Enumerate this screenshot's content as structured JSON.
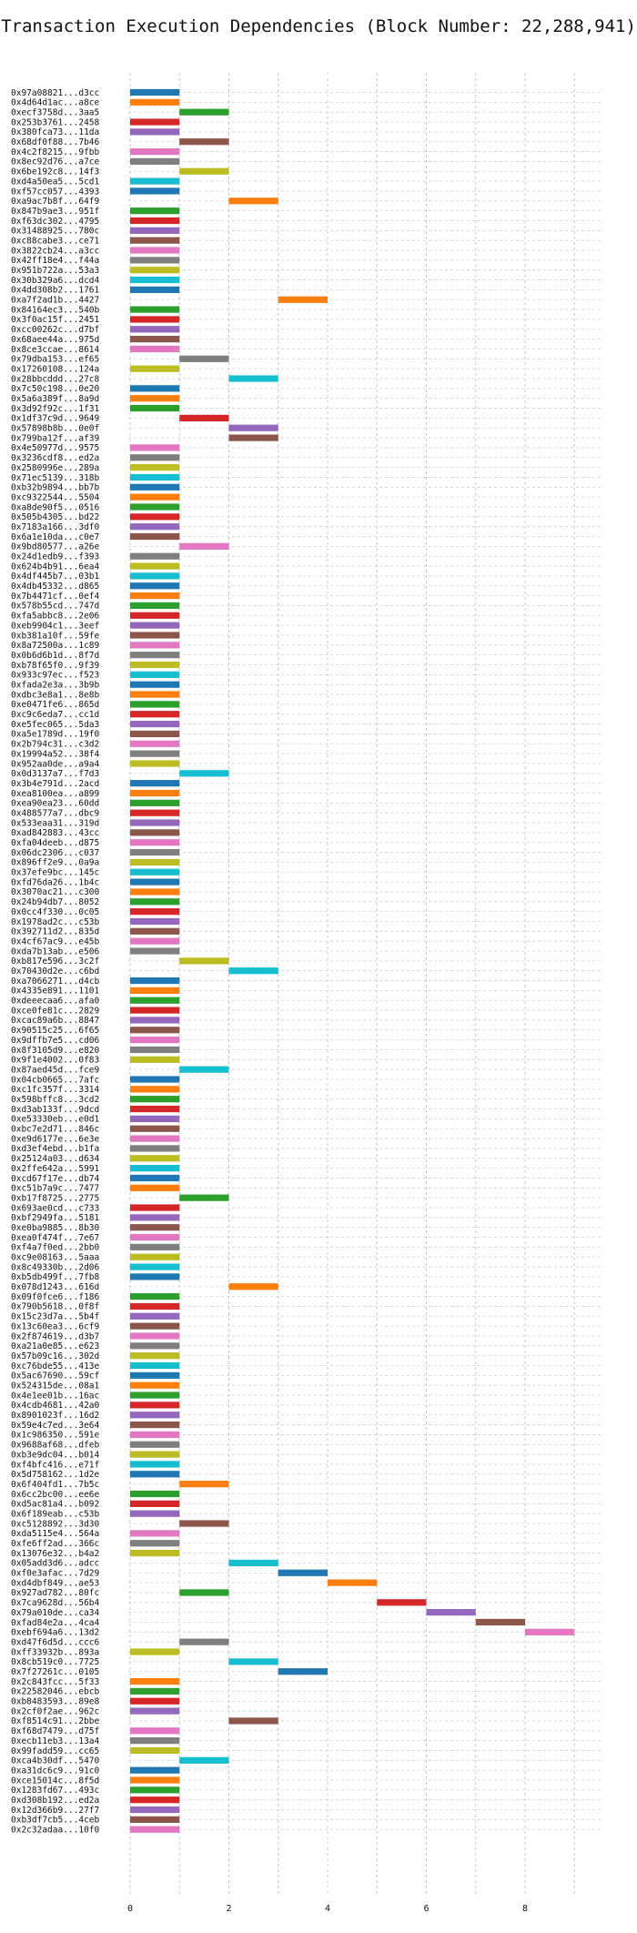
{
  "chart_data": {
    "type": "bar",
    "orientation": "horizontal",
    "title": "Transaction Execution Dependencies (Block Number: 22,288,941)",
    "xlabel": "",
    "ylabel": "",
    "xlim": [
      0,
      9.5
    ],
    "xticks": [
      "0",
      "2",
      "4",
      "6",
      "8"
    ],
    "grid": true,
    "palette": [
      "#1f77b4",
      "#ff7f0e",
      "#2ca02c",
      "#d62728",
      "#9467bd",
      "#8c564b",
      "#e377c2",
      "#7f7f7f",
      "#bcbd22",
      "#17becf"
    ],
    "transactions": [
      {
        "label": "0x97a08821...d3cc",
        "start": 0,
        "end": 1
      },
      {
        "label": "0x4d64d1ac...a8ce",
        "start": 0,
        "end": 1
      },
      {
        "label": "0xecf3758d...3aa5",
        "start": 1,
        "end": 2
      },
      {
        "label": "0x253b3761...2458",
        "start": 0,
        "end": 1
      },
      {
        "label": "0x380fca73...11da",
        "start": 0,
        "end": 1
      },
      {
        "label": "0x68df0f88...7b46",
        "start": 1,
        "end": 2
      },
      {
        "label": "0x4c2f8215...9fbb",
        "start": 0,
        "end": 1
      },
      {
        "label": "0x8ec92d76...a7ce",
        "start": 0,
        "end": 1
      },
      {
        "label": "0x6be192c8...14f3",
        "start": 1,
        "end": 2
      },
      {
        "label": "0xd4a50ea5...5cd1",
        "start": 0,
        "end": 1
      },
      {
        "label": "0xf57cc057...4393",
        "start": 0,
        "end": 1
      },
      {
        "label": "0xa9ac7b8f...64f9",
        "start": 2,
        "end": 3
      },
      {
        "label": "0x847b9ae3...951f",
        "start": 0,
        "end": 1
      },
      {
        "label": "0xf63dc302...4795",
        "start": 0,
        "end": 1
      },
      {
        "label": "0x31488925...780c",
        "start": 0,
        "end": 1
      },
      {
        "label": "0xc88cabe3...ce71",
        "start": 0,
        "end": 1
      },
      {
        "label": "0x3822cb24...a3cc",
        "start": 0,
        "end": 1
      },
      {
        "label": "0x42ff18e4...f44a",
        "start": 0,
        "end": 1
      },
      {
        "label": "0x951b722a...53a3",
        "start": 0,
        "end": 1
      },
      {
        "label": "0x30b329a6...dcd4",
        "start": 0,
        "end": 1
      },
      {
        "label": "0x4dd308b2...1761",
        "start": 0,
        "end": 1
      },
      {
        "label": "0xa7f2ad1b...4427",
        "start": 3,
        "end": 4
      },
      {
        "label": "0x84164ec3...540b",
        "start": 0,
        "end": 1
      },
      {
        "label": "0x3f0ac15f...2451",
        "start": 0,
        "end": 1
      },
      {
        "label": "0xcc00262c...d7bf",
        "start": 0,
        "end": 1
      },
      {
        "label": "0x68aee44a...975d",
        "start": 0,
        "end": 1
      },
      {
        "label": "0x8ce3ccae...8614",
        "start": 0,
        "end": 1
      },
      {
        "label": "0x79dba153...ef65",
        "start": 1,
        "end": 2
      },
      {
        "label": "0x17260108...124a",
        "start": 0,
        "end": 1
      },
      {
        "label": "0x28bbcddd...27c8",
        "start": 2,
        "end": 3
      },
      {
        "label": "0x7c50c198...0e20",
        "start": 0,
        "end": 1
      },
      {
        "label": "0x5a6a389f...8a9d",
        "start": 0,
        "end": 1
      },
      {
        "label": "0x3d92f92c...1f31",
        "start": 0,
        "end": 1
      },
      {
        "label": "0x1df37c9d...9649",
        "start": 1,
        "end": 2
      },
      {
        "label": "0x57898b8b...0e0f",
        "start": 2,
        "end": 3
      },
      {
        "label": "0x799ba12f...af39",
        "start": 2,
        "end": 3
      },
      {
        "label": "0x4e50977d...9575",
        "start": 0,
        "end": 1
      },
      {
        "label": "0x3236cdf8...ed2a",
        "start": 0,
        "end": 1
      },
      {
        "label": "0x2580996e...289a",
        "start": 0,
        "end": 1
      },
      {
        "label": "0x71ec5139...318b",
        "start": 0,
        "end": 1
      },
      {
        "label": "0xb32b9894...bb7b",
        "start": 0,
        "end": 1
      },
      {
        "label": "0xc9322544...5504",
        "start": 0,
        "end": 1
      },
      {
        "label": "0xa8de90f5...0516",
        "start": 0,
        "end": 1
      },
      {
        "label": "0x505b4305...bd22",
        "start": 0,
        "end": 1
      },
      {
        "label": "0x7183a166...3df0",
        "start": 0,
        "end": 1
      },
      {
        "label": "0x6a1e10da...c0e7",
        "start": 0,
        "end": 1
      },
      {
        "label": "0x9bd80577...a26e",
        "start": 1,
        "end": 2
      },
      {
        "label": "0x24d1edb9...f393",
        "start": 0,
        "end": 1
      },
      {
        "label": "0x624b4b91...6ea4",
        "start": 0,
        "end": 1
      },
      {
        "label": "0x4df445b7...03b1",
        "start": 0,
        "end": 1
      },
      {
        "label": "0x4db45332...d865",
        "start": 0,
        "end": 1
      },
      {
        "label": "0x7b4471cf...0ef4",
        "start": 0,
        "end": 1
      },
      {
        "label": "0x578b55cd...747d",
        "start": 0,
        "end": 1
      },
      {
        "label": "0xfa5abbc8...2e06",
        "start": 0,
        "end": 1
      },
      {
        "label": "0xeb9904c1...3eef",
        "start": 0,
        "end": 1
      },
      {
        "label": "0xb381a10f...59fe",
        "start": 0,
        "end": 1
      },
      {
        "label": "0x8a72500a...1c89",
        "start": 0,
        "end": 1
      },
      {
        "label": "0x0b6d6b1d...8f7d",
        "start": 0,
        "end": 1
      },
      {
        "label": "0xb78f65f0...9f39",
        "start": 0,
        "end": 1
      },
      {
        "label": "0x933c97ec...f523",
        "start": 0,
        "end": 1
      },
      {
        "label": "0xfada2e3a...3b9b",
        "start": 0,
        "end": 1
      },
      {
        "label": "0xdbc3e8a1...8e8b",
        "start": 0,
        "end": 1
      },
      {
        "label": "0xe0471fe6...865d",
        "start": 0,
        "end": 1
      },
      {
        "label": "0xc9c6eda7...cc1d",
        "start": 0,
        "end": 1
      },
      {
        "label": "0xe5fec065...5da3",
        "start": 0,
        "end": 1
      },
      {
        "label": "0xa5e1789d...19f0",
        "start": 0,
        "end": 1
      },
      {
        "label": "0x2b794c31...c3d2",
        "start": 0,
        "end": 1
      },
      {
        "label": "0x19994a52...38f4",
        "start": 0,
        "end": 1
      },
      {
        "label": "0x952aa0de...a9a4",
        "start": 0,
        "end": 1
      },
      {
        "label": "0x0d3137a7...f7d3",
        "start": 1,
        "end": 2
      },
      {
        "label": "0x3b4e791d...2acd",
        "start": 0,
        "end": 1
      },
      {
        "label": "0xea8100ea...a899",
        "start": 0,
        "end": 1
      },
      {
        "label": "0xea90ea23...60dd",
        "start": 0,
        "end": 1
      },
      {
        "label": "0x488577a7...dbc9",
        "start": 0,
        "end": 1
      },
      {
        "label": "0x533eaa31...319d",
        "start": 0,
        "end": 1
      },
      {
        "label": "0xad842883...43cc",
        "start": 0,
        "end": 1
      },
      {
        "label": "0xfa04deeb...d875",
        "start": 0,
        "end": 1
      },
      {
        "label": "0x06dc2306...c037",
        "start": 0,
        "end": 1
      },
      {
        "label": "0x896ff2e9...0a9a",
        "start": 0,
        "end": 1
      },
      {
        "label": "0x37efe9bc...145c",
        "start": 0,
        "end": 1
      },
      {
        "label": "0xfd76da26...1b4c",
        "start": 0,
        "end": 1
      },
      {
        "label": "0x3070ac21...c300",
        "start": 0,
        "end": 1
      },
      {
        "label": "0x24b94db7...8052",
        "start": 0,
        "end": 1
      },
      {
        "label": "0x0cc4f330...0c05",
        "start": 0,
        "end": 1
      },
      {
        "label": "0x1978ad2c...c53b",
        "start": 0,
        "end": 1
      },
      {
        "label": "0x392711d2...835d",
        "start": 0,
        "end": 1
      },
      {
        "label": "0x4cf67ac9...e45b",
        "start": 0,
        "end": 1
      },
      {
        "label": "0xda7b13ab...e506",
        "start": 0,
        "end": 1
      },
      {
        "label": "0xb817e596...3c2f",
        "start": 1,
        "end": 2
      },
      {
        "label": "0x70430d2e...c6bd",
        "start": 2,
        "end": 3
      },
      {
        "label": "0xa7066271...d4cb",
        "start": 0,
        "end": 1
      },
      {
        "label": "0x4335e891...1101",
        "start": 0,
        "end": 1
      },
      {
        "label": "0xdeeecaa6...afa0",
        "start": 0,
        "end": 1
      },
      {
        "label": "0xce0fe81c...2829",
        "start": 0,
        "end": 1
      },
      {
        "label": "0xcac89a6b...8847",
        "start": 0,
        "end": 1
      },
      {
        "label": "0x90515c25...6f65",
        "start": 0,
        "end": 1
      },
      {
        "label": "0x9dffb7e5...cd06",
        "start": 0,
        "end": 1
      },
      {
        "label": "0x8f3105d9...e820",
        "start": 0,
        "end": 1
      },
      {
        "label": "0x9f1e4002...0f83",
        "start": 0,
        "end": 1
      },
      {
        "label": "0x87aed45d...fce9",
        "start": 1,
        "end": 2
      },
      {
        "label": "0x04cb0665...7afc",
        "start": 0,
        "end": 1
      },
      {
        "label": "0xc1fc357f...3314",
        "start": 0,
        "end": 1
      },
      {
        "label": "0x598bffc8...3cd2",
        "start": 0,
        "end": 1
      },
      {
        "label": "0xd3ab133f...9dcd",
        "start": 0,
        "end": 1
      },
      {
        "label": "0xe53330eb...e0d1",
        "start": 0,
        "end": 1
      },
      {
        "label": "0xbc7e2d71...846c",
        "start": 0,
        "end": 1
      },
      {
        "label": "0xe9d6177e...6e3e",
        "start": 0,
        "end": 1
      },
      {
        "label": "0xd3ef4ebd...b1fa",
        "start": 0,
        "end": 1
      },
      {
        "label": "0x25124a03...d634",
        "start": 0,
        "end": 1
      },
      {
        "label": "0x2ffe642a...5991",
        "start": 0,
        "end": 1
      },
      {
        "label": "0xcd67f17e...db74",
        "start": 0,
        "end": 1
      },
      {
        "label": "0xc51b7a9c...7477",
        "start": 0,
        "end": 1
      },
      {
        "label": "0xb17f8725...2775",
        "start": 1,
        "end": 2
      },
      {
        "label": "0x693ae0cd...c733",
        "start": 0,
        "end": 1
      },
      {
        "label": "0xbf2949fa...5181",
        "start": 0,
        "end": 1
      },
      {
        "label": "0xe0ba9885...8b30",
        "start": 0,
        "end": 1
      },
      {
        "label": "0xea0f474f...7e67",
        "start": 0,
        "end": 1
      },
      {
        "label": "0xf4a7f0ed...2bb0",
        "start": 0,
        "end": 1
      },
      {
        "label": "0xc9e08163...5aaa",
        "start": 0,
        "end": 1
      },
      {
        "label": "0x8c49330b...2d06",
        "start": 0,
        "end": 1
      },
      {
        "label": "0xb5db499f...7fb8",
        "start": 0,
        "end": 1
      },
      {
        "label": "0x078d1243...616d",
        "start": 2,
        "end": 3
      },
      {
        "label": "0x09f0fce6...f186",
        "start": 0,
        "end": 1
      },
      {
        "label": "0x790b5618...0f8f",
        "start": 0,
        "end": 1
      },
      {
        "label": "0x15c23d7a...5b4f",
        "start": 0,
        "end": 1
      },
      {
        "label": "0x13c60ea3...6cf9",
        "start": 0,
        "end": 1
      },
      {
        "label": "0x2f874619...d3b7",
        "start": 0,
        "end": 1
      },
      {
        "label": "0xa21a0e85...e623",
        "start": 0,
        "end": 1
      },
      {
        "label": "0x57b09c16...302d",
        "start": 0,
        "end": 1
      },
      {
        "label": "0xc76bde55...413e",
        "start": 0,
        "end": 1
      },
      {
        "label": "0x5ac67690...59cf",
        "start": 0,
        "end": 1
      },
      {
        "label": "0x524315de...08a1",
        "start": 0,
        "end": 1
      },
      {
        "label": "0x4e1ee01b...16ac",
        "start": 0,
        "end": 1
      },
      {
        "label": "0x4cdb4681...42a0",
        "start": 0,
        "end": 1
      },
      {
        "label": "0x8901023f...16d2",
        "start": 0,
        "end": 1
      },
      {
        "label": "0x59e4c7ed...3e64",
        "start": 0,
        "end": 1
      },
      {
        "label": "0x1c986350...591e",
        "start": 0,
        "end": 1
      },
      {
        "label": "0x9688af68...dfeb",
        "start": 0,
        "end": 1
      },
      {
        "label": "0xb3e9dc04...b014",
        "start": 0,
        "end": 1
      },
      {
        "label": "0xf4bfc416...e71f",
        "start": 0,
        "end": 1
      },
      {
        "label": "0x5d758162...1d2e",
        "start": 0,
        "end": 1
      },
      {
        "label": "0x6f404fd1...7b5c",
        "start": 1,
        "end": 2
      },
      {
        "label": "0x6cc2bc00...ee6e",
        "start": 0,
        "end": 1
      },
      {
        "label": "0xd5ac81a4...b092",
        "start": 0,
        "end": 1
      },
      {
        "label": "0x6f189eab...c53b",
        "start": 0,
        "end": 1
      },
      {
        "label": "0xc5128892...3d30",
        "start": 1,
        "end": 2
      },
      {
        "label": "0xda5115e4...564a",
        "start": 0,
        "end": 1
      },
      {
        "label": "0xfe6ff2ad...366c",
        "start": 0,
        "end": 1
      },
      {
        "label": "0x13076e32...b4a2",
        "start": 0,
        "end": 1
      },
      {
        "label": "0x05add3d6...adcc",
        "start": 2,
        "end": 3
      },
      {
        "label": "0xf0e3afac...7d29",
        "start": 3,
        "end": 4
      },
      {
        "label": "0xd4dbf849...ae53",
        "start": 4,
        "end": 5
      },
      {
        "label": "0x927ad782...80fc",
        "start": 1,
        "end": 2
      },
      {
        "label": "0x7ca9628d...56b4",
        "start": 5,
        "end": 6
      },
      {
        "label": "0x79a010de...ca34",
        "start": 6,
        "end": 7
      },
      {
        "label": "0xfad84e2a...4ca4",
        "start": 7,
        "end": 8
      },
      {
        "label": "0xebf694a6...13d2",
        "start": 8,
        "end": 9
      },
      {
        "label": "0xd47f6d5d...ccc6",
        "start": 1,
        "end": 2
      },
      {
        "label": "0xff33932b...893a",
        "start": 0,
        "end": 1
      },
      {
        "label": "0x8cb519c0...7725",
        "start": 2,
        "end": 3
      },
      {
        "label": "0x7f27261c...0105",
        "start": 3,
        "end": 4
      },
      {
        "label": "0x2c843fcc...5f33",
        "start": 0,
        "end": 1
      },
      {
        "label": "0x22582046...ebcb",
        "start": 0,
        "end": 1
      },
      {
        "label": "0xb8483593...89e8",
        "start": 0,
        "end": 1
      },
      {
        "label": "0x2cf0f2ae...962c",
        "start": 0,
        "end": 1
      },
      {
        "label": "0xf8514c91...2bbe",
        "start": 2,
        "end": 3
      },
      {
        "label": "0xf68d7479...d75f",
        "start": 0,
        "end": 1
      },
      {
        "label": "0xecb11eb3...13a4",
        "start": 0,
        "end": 1
      },
      {
        "label": "0x99fadd59...cc65",
        "start": 0,
        "end": 1
      },
      {
        "label": "0xca4b30df...5470",
        "start": 1,
        "end": 2
      },
      {
        "label": "0xa31dc6c9...91c0",
        "start": 0,
        "end": 1
      },
      {
        "label": "0xce15014c...8f5d",
        "start": 0,
        "end": 1
      },
      {
        "label": "0x1283fd67...493c",
        "start": 0,
        "end": 1
      },
      {
        "label": "0xd308b192...ed2a",
        "start": 0,
        "end": 1
      },
      {
        "label": "0x12d366b9...27f7",
        "start": 0,
        "end": 1
      },
      {
        "label": "0xb3df7cb5...4ceb",
        "start": 0,
        "end": 1
      },
      {
        "label": "0x2c32adaa...10f0",
        "start": 0,
        "end": 1
      }
    ]
  }
}
